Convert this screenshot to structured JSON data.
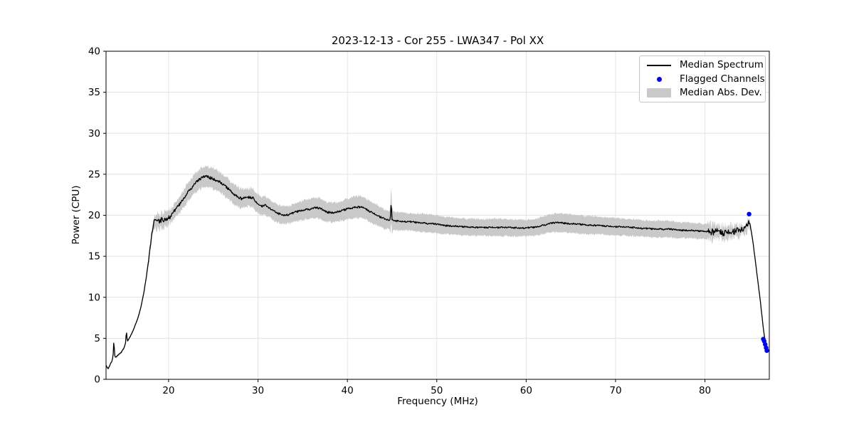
{
  "chart_data": {
    "type": "line",
    "title": "2023-12-13 - Cor 255 - LWA347 - Pol XX",
    "xlabel": "Frequency (MHz)",
    "ylabel": "Power (CPU)",
    "xlim": [
      13.0,
      87.2
    ],
    "ylim": [
      0,
      40
    ],
    "xticks": [
      20,
      30,
      40,
      50,
      60,
      70,
      80
    ],
    "yticks": [
      0,
      5,
      10,
      15,
      20,
      25,
      30,
      35,
      40
    ],
    "grid": true,
    "colors": {
      "line": "#000000",
      "marker": "#0000ff",
      "band": "#c9c9c9",
      "grid": "#e2e2e2",
      "spine": "#000000"
    },
    "legend": {
      "position": "upper right",
      "entries": [
        {
          "label": "Median Spectrum",
          "type": "line",
          "color": "#000000"
        },
        {
          "label": "Flagged Channels",
          "type": "marker",
          "color": "#0000ff"
        },
        {
          "label": "Median Abs. Dev.",
          "type": "patch",
          "color": "#c9c9c9"
        }
      ]
    },
    "series": [
      {
        "name": "Median Spectrum",
        "type": "line",
        "color": "#000000",
        "points": [
          [
            13.02,
            1.7
          ],
          [
            13.1,
            1.45
          ],
          [
            13.25,
            1.3
          ],
          [
            13.5,
            1.9
          ],
          [
            13.7,
            2.3
          ],
          [
            13.82,
            3.2
          ],
          [
            13.88,
            5.0
          ],
          [
            13.95,
            3.0
          ],
          [
            14.05,
            2.65
          ],
          [
            14.3,
            2.9
          ],
          [
            14.7,
            3.3
          ],
          [
            15.0,
            3.8
          ],
          [
            15.18,
            4.4
          ],
          [
            15.28,
            5.9
          ],
          [
            15.38,
            4.6
          ],
          [
            15.7,
            5.2
          ],
          [
            16.0,
            5.9
          ],
          [
            16.3,
            6.7
          ],
          [
            16.6,
            7.6
          ],
          [
            16.9,
            8.8
          ],
          [
            17.2,
            10.4
          ],
          [
            17.5,
            12.4
          ],
          [
            17.8,
            14.8
          ],
          [
            18.0,
            16.6
          ],
          [
            18.2,
            18.2
          ],
          [
            18.35,
            19.1
          ],
          [
            18.5,
            19.4
          ],
          [
            18.65,
            19.1
          ],
          [
            18.8,
            19.5
          ],
          [
            19.0,
            19.2
          ],
          [
            19.2,
            19.45
          ],
          [
            19.4,
            19.25
          ],
          [
            19.6,
            19.6
          ],
          [
            19.8,
            19.45
          ],
          [
            20.0,
            19.7
          ],
          [
            20.3,
            20.0
          ],
          [
            20.6,
            20.45
          ],
          [
            21.0,
            21.0
          ],
          [
            21.4,
            21.6
          ],
          [
            21.8,
            22.2
          ],
          [
            22.2,
            22.85
          ],
          [
            22.6,
            23.4
          ],
          [
            23.0,
            23.9
          ],
          [
            23.4,
            24.3
          ],
          [
            23.8,
            24.6
          ],
          [
            24.2,
            24.8
          ],
          [
            24.5,
            24.65
          ],
          [
            24.8,
            24.5
          ],
          [
            25.2,
            24.3
          ],
          [
            25.6,
            24.1
          ],
          [
            26.0,
            23.8
          ],
          [
            26.4,
            23.5
          ],
          [
            26.8,
            23.1
          ],
          [
            27.2,
            22.7
          ],
          [
            27.5,
            22.4
          ],
          [
            27.8,
            22.2
          ],
          [
            28.2,
            22.0
          ],
          [
            28.6,
            22.1
          ],
          [
            29.0,
            22.2
          ],
          [
            29.4,
            22.2
          ],
          [
            29.7,
            21.7
          ],
          [
            30.0,
            21.4
          ],
          [
            30.4,
            21.1
          ],
          [
            30.8,
            21.2
          ],
          [
            31.2,
            20.9
          ],
          [
            31.6,
            20.6
          ],
          [
            32.0,
            20.35
          ],
          [
            32.5,
            20.1
          ],
          [
            33.0,
            20.0
          ],
          [
            33.5,
            20.1
          ],
          [
            34.0,
            20.3
          ],
          [
            34.5,
            20.5
          ],
          [
            35.0,
            20.6
          ],
          [
            35.5,
            20.7
          ],
          [
            36.0,
            20.8
          ],
          [
            36.5,
            20.9
          ],
          [
            37.0,
            20.8
          ],
          [
            37.7,
            20.4
          ],
          [
            38.3,
            20.3
          ],
          [
            39.0,
            20.4
          ],
          [
            39.5,
            20.6
          ],
          [
            40.0,
            20.8
          ],
          [
            40.5,
            20.9
          ],
          [
            41.0,
            21.0
          ],
          [
            41.5,
            21.0
          ],
          [
            42.0,
            20.8
          ],
          [
            42.5,
            20.5
          ],
          [
            43.0,
            20.2
          ],
          [
            43.5,
            19.9
          ],
          [
            44.0,
            19.6
          ],
          [
            44.5,
            19.4
          ],
          [
            44.8,
            19.4
          ],
          [
            44.9,
            21.6
          ],
          [
            45.0,
            19.4
          ],
          [
            45.5,
            19.3
          ],
          [
            46.0,
            19.25
          ],
          [
            47.0,
            19.2
          ],
          [
            48.0,
            19.1
          ],
          [
            49.0,
            19.0
          ],
          [
            50.0,
            18.9
          ],
          [
            51.0,
            18.75
          ],
          [
            52.0,
            18.65
          ],
          [
            53.0,
            18.6
          ],
          [
            54.0,
            18.55
          ],
          [
            55.0,
            18.5
          ],
          [
            56.0,
            18.55
          ],
          [
            57.0,
            18.5
          ],
          [
            58.0,
            18.5
          ],
          [
            59.0,
            18.45
          ],
          [
            60.0,
            18.45
          ],
          [
            60.5,
            18.5
          ],
          [
            61.0,
            18.55
          ],
          [
            61.5,
            18.65
          ],
          [
            62.0,
            18.8
          ],
          [
            62.5,
            18.95
          ],
          [
            63.0,
            19.05
          ],
          [
            63.5,
            19.1
          ],
          [
            64.0,
            19.1
          ],
          [
            64.5,
            19.0
          ],
          [
            65.0,
            18.95
          ],
          [
            66.0,
            18.9
          ],
          [
            67.0,
            18.8
          ],
          [
            68.0,
            18.75
          ],
          [
            69.0,
            18.7
          ],
          [
            70.0,
            18.6
          ],
          [
            71.0,
            18.55
          ],
          [
            72.0,
            18.5
          ],
          [
            73.0,
            18.4
          ],
          [
            74.0,
            18.35
          ],
          [
            75.0,
            18.3
          ],
          [
            76.0,
            18.3
          ],
          [
            77.0,
            18.2
          ],
          [
            78.0,
            18.15
          ],
          [
            79.0,
            18.1
          ],
          [
            80.0,
            18.05
          ],
          [
            80.5,
            18.0
          ],
          [
            81.0,
            17.95
          ],
          [
            81.5,
            18.0
          ],
          [
            82.0,
            17.9
          ],
          [
            82.5,
            18.0
          ],
          [
            83.0,
            17.95
          ],
          [
            83.5,
            18.05
          ],
          [
            84.0,
            18.1
          ],
          [
            84.4,
            18.25
          ],
          [
            84.7,
            18.6
          ],
          [
            84.95,
            19.3
          ],
          [
            85.1,
            18.6
          ],
          [
            85.4,
            16.5
          ],
          [
            85.8,
            13.0
          ],
          [
            86.2,
            9.5
          ],
          [
            86.5,
            6.5
          ],
          [
            86.75,
            4.4
          ],
          [
            86.95,
            3.2
          ]
        ],
        "noise_regions": [
          {
            "from": 13.0,
            "to": 17.7,
            "amp": 0.04
          },
          {
            "from": 17.7,
            "to": 20.3,
            "amp": 0.3
          },
          {
            "from": 20.3,
            "to": 29.5,
            "amp": 0.18
          },
          {
            "from": 29.5,
            "to": 44.6,
            "amp": 0.13
          },
          {
            "from": 44.6,
            "to": 60.0,
            "amp": 0.1
          },
          {
            "from": 60.0,
            "to": 80.3,
            "amp": 0.1
          },
          {
            "from": 80.3,
            "to": 85.05,
            "amp": 0.42
          },
          {
            "from": 85.05,
            "to": 87.0,
            "amp": 0.04
          }
        ]
      },
      {
        "name": "Median Abs. Dev.",
        "type": "band",
        "color": "#c9c9c9",
        "half_width": [
          [
            13.0,
            0.1
          ],
          [
            15.0,
            0.12
          ],
          [
            16.5,
            0.15
          ],
          [
            17.5,
            0.3
          ],
          [
            18.0,
            0.55
          ],
          [
            18.5,
            0.8
          ],
          [
            19.5,
            0.85
          ],
          [
            20.5,
            0.9
          ],
          [
            22.0,
            1.05
          ],
          [
            23.5,
            1.2
          ],
          [
            24.5,
            1.25
          ],
          [
            26.0,
            1.2
          ],
          [
            27.5,
            1.15
          ],
          [
            29.0,
            1.1
          ],
          [
            31.0,
            1.1
          ],
          [
            33.0,
            1.05
          ],
          [
            35.0,
            1.15
          ],
          [
            37.0,
            1.25
          ],
          [
            39.0,
            1.15
          ],
          [
            41.0,
            1.3
          ],
          [
            42.0,
            1.3
          ],
          [
            43.5,
            1.2
          ],
          [
            44.7,
            1.1
          ],
          [
            44.9,
            2.2
          ],
          [
            45.1,
            1.1
          ],
          [
            47.0,
            1.05
          ],
          [
            49.0,
            1.1
          ],
          [
            51.0,
            1.05
          ],
          [
            53.0,
            1.0
          ],
          [
            55.0,
            1.0
          ],
          [
            57.0,
            1.05
          ],
          [
            59.0,
            1.0
          ],
          [
            61.0,
            1.0
          ],
          [
            63.0,
            1.1
          ],
          [
            64.0,
            1.15
          ],
          [
            66.0,
            1.1
          ],
          [
            68.0,
            1.05
          ],
          [
            70.0,
            1.05
          ],
          [
            72.0,
            1.0
          ],
          [
            74.0,
            1.0
          ],
          [
            76.0,
            1.0
          ],
          [
            78.0,
            0.95
          ],
          [
            80.0,
            0.9
          ],
          [
            81.5,
            0.8
          ],
          [
            83.0,
            0.65
          ],
          [
            84.3,
            0.55
          ],
          [
            84.9,
            0.4
          ],
          [
            85.15,
            0.2
          ],
          [
            85.25,
            0.0
          ]
        ]
      },
      {
        "name": "Flagged Channels",
        "type": "scatter",
        "color": "#0000ff",
        "points": [
          [
            84.94,
            20.15
          ],
          [
            86.52,
            4.9
          ],
          [
            86.63,
            4.65
          ],
          [
            86.74,
            4.25
          ],
          [
            86.84,
            3.85
          ],
          [
            86.92,
            3.5
          ]
        ]
      }
    ]
  }
}
